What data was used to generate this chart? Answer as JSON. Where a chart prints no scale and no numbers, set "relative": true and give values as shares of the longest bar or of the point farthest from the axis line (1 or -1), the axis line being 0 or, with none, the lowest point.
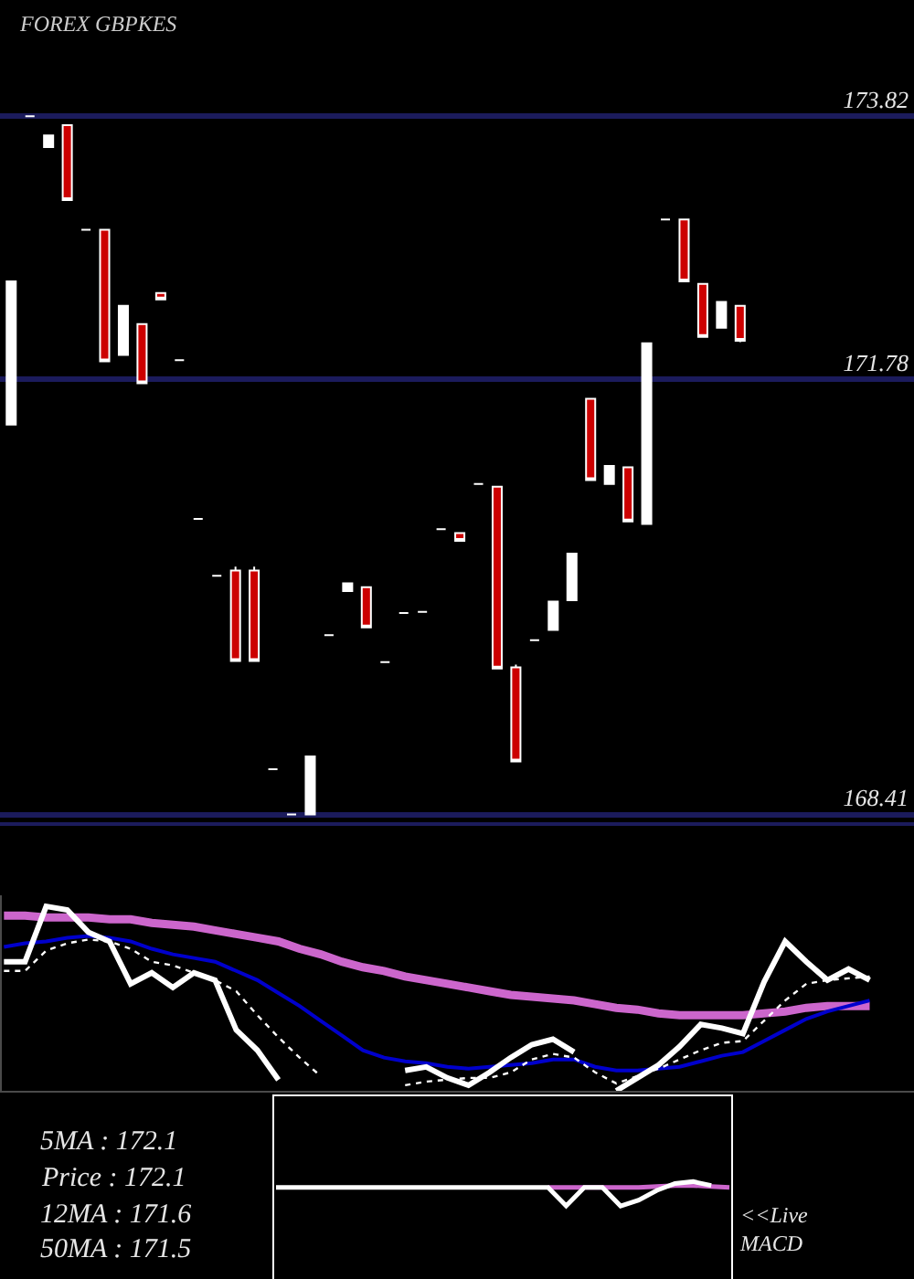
{
  "chart_data": [
    {
      "type": "candlestick",
      "title": "FOREX GBPKES",
      "categories": [
        null,
        null,
        null,
        null,
        null,
        null,
        null,
        null,
        null,
        null,
        null,
        null,
        null,
        null,
        null,
        null,
        null,
        null,
        null,
        null,
        null,
        null,
        null,
        null,
        null,
        null,
        null,
        null,
        null,
        null,
        null,
        null,
        null,
        null,
        null,
        null,
        null,
        null,
        null,
        null
      ],
      "ohlc": [
        [
          171.43,
          172.54,
          171.43,
          172.54
        ],
        [
          173.82,
          173.82,
          173.82,
          173.82
        ],
        [
          173.58,
          173.67,
          173.58,
          173.67
        ],
        [
          173.75,
          173.75,
          173.17,
          173.17
        ],
        [
          172.94,
          172.94,
          172.94,
          172.94
        ],
        [
          172.94,
          172.94,
          171.92,
          171.92
        ],
        [
          171.97,
          172.35,
          171.97,
          172.35
        ],
        [
          172.21,
          172.21,
          171.75,
          171.75
        ],
        [
          172.45,
          172.45,
          172.4,
          172.4
        ],
        [
          171.93,
          171.93,
          171.93,
          171.93
        ],
        [
          170.7,
          170.7,
          170.7,
          170.7
        ],
        [
          170.26,
          170.26,
          170.26,
          170.26
        ],
        [
          170.3,
          170.33,
          169.6,
          169.6
        ],
        [
          170.3,
          170.33,
          169.6,
          169.6
        ],
        [
          168.76,
          168.76,
          168.76,
          168.76
        ],
        [
          168.41,
          168.41,
          168.41,
          168.41
        ],
        [
          168.41,
          168.86,
          168.41,
          168.86
        ],
        [
          169.8,
          169.8,
          169.8,
          169.8
        ],
        [
          170.14,
          170.2,
          170.14,
          170.2
        ],
        [
          170.17,
          170.17,
          169.86,
          169.86
        ],
        [
          169.59,
          169.59,
          169.59,
          169.59
        ],
        [
          169.97,
          169.97,
          169.97,
          169.97
        ],
        [
          169.98,
          169.98,
          169.98,
          169.98
        ],
        [
          170.62,
          170.62,
          170.62,
          170.62
        ],
        [
          170.59,
          170.59,
          170.53,
          170.53
        ],
        [
          170.97,
          170.97,
          170.97,
          170.97
        ],
        [
          170.95,
          170.95,
          169.54,
          169.54
        ],
        [
          169.55,
          169.57,
          168.82,
          168.82
        ],
        [
          169.76,
          169.76,
          169.76,
          169.76
        ],
        [
          169.84,
          170.06,
          169.84,
          170.06
        ],
        [
          170.07,
          170.43,
          170.07,
          170.43
        ],
        [
          171.63,
          171.63,
          171.0,
          171.0
        ],
        [
          170.97,
          171.11,
          170.97,
          171.11
        ],
        [
          171.1,
          171.1,
          170.68,
          170.68
        ],
        [
          170.66,
          172.06,
          170.66,
          172.06
        ],
        [
          173.02,
          173.02,
          173.02,
          173.02
        ],
        [
          173.02,
          173.02,
          172.54,
          172.54
        ],
        [
          172.52,
          172.52,
          172.11,
          172.11
        ],
        [
          172.18,
          172.38,
          172.18,
          172.38
        ],
        [
          172.35,
          172.35,
          172.07,
          172.08
        ]
      ],
      "colors": [
        "#ffffff",
        "#ffffff",
        "#ffffff",
        "#cc0000",
        "#ffffff",
        "#cc0000",
        "#ffffff",
        "#cc0000",
        "#cc0000",
        "#ffffff",
        "#ffffff",
        "#ffffff",
        "#cc0000",
        "#cc0000",
        "#ffffff",
        "#ffffff",
        "#ffffff",
        "#ffffff",
        "#ffffff",
        "#cc0000",
        "#ffffff",
        "#ffffff",
        "#ffffff",
        "#ffffff",
        "#cc0000",
        "#ffffff",
        "#cc0000",
        "#cc0000",
        "#ffffff",
        "#ffffff",
        "#ffffff",
        "#cc0000",
        "#ffffff",
        "#cc0000",
        "#ffffff",
        "#ffffff",
        "#cc0000",
        "#cc0000",
        "#ffffff",
        "#cc0000"
      ],
      "ylim": [
        168.35,
        174.72
      ],
      "yticks": [
        168.41,
        171.78,
        173.82
      ],
      "grid": "y",
      "tick_labels": "y"
    },
    {
      "type": "line",
      "relative": true,
      "tick_labels": false,
      "categories": [
        null,
        null,
        null,
        null,
        null,
        null,
        null,
        null,
        null,
        null,
        null,
        null,
        null,
        null,
        null,
        null,
        null,
        null,
        null,
        null,
        null,
        null,
        null,
        null,
        null,
        null,
        null,
        null,
        null,
        null,
        null,
        null,
        null,
        null,
        null,
        null,
        null,
        null,
        null,
        null,
        null,
        null
      ],
      "series": [
        {
          "color": "#cc66cc",
          "line_style": "solid",
          "values": [
            0.95,
            0.95,
            0.94,
            0.94,
            0.94,
            0.93,
            0.93,
            0.91,
            0.9,
            0.89,
            0.87,
            0.85,
            0.83,
            0.81,
            0.77,
            0.74,
            0.7,
            0.67,
            0.65,
            0.62,
            0.6,
            0.58,
            0.56,
            0.54,
            0.52,
            0.51,
            0.5,
            0.49,
            0.47,
            0.45,
            0.44,
            0.42,
            0.41,
            0.41,
            0.41,
            0.41,
            0.42,
            0.43,
            0.45,
            0.46,
            0.46,
            0.46
          ]
        },
        {
          "color": "#0000cc",
          "line_style": "solid",
          "values": [
            0.78,
            0.8,
            0.81,
            0.83,
            0.84,
            0.83,
            0.81,
            0.77,
            0.74,
            0.72,
            0.7,
            0.65,
            0.6,
            0.53,
            0.46,
            0.38,
            0.3,
            0.22,
            0.18,
            0.16,
            0.15,
            0.13,
            0.12,
            0.13,
            0.14,
            0.15,
            0.17,
            0.17,
            0.13,
            0.11,
            0.11,
            0.12,
            0.13,
            0.16,
            0.19,
            0.21,
            0.27,
            0.33,
            0.39,
            0.43,
            0.46,
            0.49
          ]
        },
        {
          "color": "#ffffff",
          "line_style": "dotted",
          "values": [
            0.65,
            0.65,
            0.76,
            0.8,
            0.82,
            0.81,
            0.77,
            0.7,
            0.68,
            0.64,
            0.6,
            0.54,
            0.41,
            0.29,
            0.18,
            0.08,
            null,
            null,
            null,
            0.03,
            0.05,
            0.06,
            0.07,
            0.07,
            0.1,
            0.17,
            0.2,
            0.18,
            0.1,
            0.04,
            0.08,
            0.12,
            0.17,
            0.22,
            0.26,
            0.27,
            0.38,
            0.49,
            0.58,
            0.6,
            0.61,
            0.62
          ]
        },
        {
          "color": "#ffffff",
          "line_style": "solid",
          "values": [
            0.7,
            0.7,
            1.0,
            0.98,
            0.86,
            0.81,
            0.58,
            0.64,
            0.56,
            0.64,
            0.6,
            0.33,
            0.22,
            0.06,
            null,
            null,
            null,
            null,
            null,
            0.11,
            0.13,
            0.07,
            0.03,
            0.1,
            0.18,
            0.25,
            0.28,
            0.21,
            null,
            0.0,
            0.07,
            0.14,
            0.24,
            0.36,
            0.34,
            0.31,
            0.59,
            0.81,
            0.7,
            0.6,
            0.66,
            0.6
          ]
        }
      ],
      "annotations": [
        "5MA : 172.1",
        "Price : 172.1",
        "12MA : 171.6",
        "50MA : 171.5"
      ]
    },
    {
      "type": "line",
      "relative": true,
      "tick_labels": false,
      "categories": [
        null,
        null,
        null,
        null,
        null,
        null,
        null,
        null,
        null,
        null,
        null,
        null,
        null,
        null,
        null,
        null,
        null,
        null,
        null,
        null,
        null,
        null,
        null,
        null,
        null,
        null
      ],
      "series": [
        {
          "color": "#cc66cc",
          "line_style": "solid",
          "values": [
            null,
            null,
            null,
            null,
            null,
            null,
            null,
            null,
            null,
            null,
            null,
            null,
            null,
            null,
            null,
            0.94,
            0.94,
            0.94,
            0.94,
            0.94,
            0.94,
            0.95,
            0.96,
            0.96,
            0.95,
            0.94
          ]
        },
        {
          "color": "#ffffff",
          "line_style": "solid",
          "values": [
            0.94,
            0.94,
            0.94,
            0.94,
            0.94,
            0.94,
            0.94,
            0.94,
            0.94,
            0.94,
            0.94,
            0.94,
            0.94,
            0.94,
            0.94,
            0.94,
            0.75,
            0.94,
            0.94,
            0.75,
            0.81,
            0.91,
            0.98,
            1.0,
            0.96,
            null
          ]
        }
      ],
      "annotations": [
        "<<Live\nMACD"
      ]
    }
  ]
}
